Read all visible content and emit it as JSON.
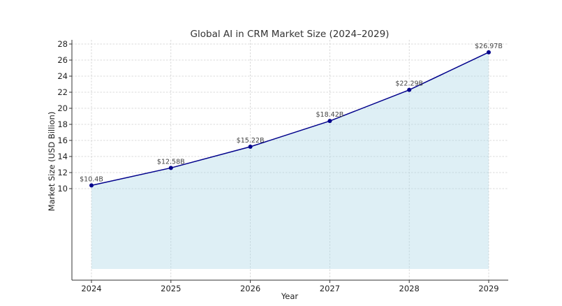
{
  "chart_data": {
    "type": "area",
    "title": "Global AI in CRM Market Size (2024–2029)",
    "xlabel": "Year",
    "ylabel": "Market Size (USD Billion)",
    "categories": [
      "2024",
      "2025",
      "2026",
      "2027",
      "2028",
      "2029"
    ],
    "x": [
      2024,
      2025,
      2026,
      2027,
      2028,
      2029
    ],
    "series": [
      {
        "name": "Market Size",
        "values": [
          10.4,
          12.58,
          15.22,
          18.42,
          22.29,
          26.97
        ],
        "labels": [
          "$10.4B",
          "$12.58B",
          "$15.22B",
          "$18.42B",
          "$22.29B",
          "$26.97B"
        ],
        "line_color": "#00008b",
        "fill_color": "#add8e6",
        "fill_opacity": 0.4
      }
    ],
    "yticks": [
      10,
      12,
      14,
      16,
      18,
      20,
      22,
      24,
      26,
      28
    ],
    "ylim": [
      -1.1,
      28.4
    ],
    "xlim": [
      2023.75,
      2029.25
    ],
    "grid": true,
    "legend": null
  }
}
